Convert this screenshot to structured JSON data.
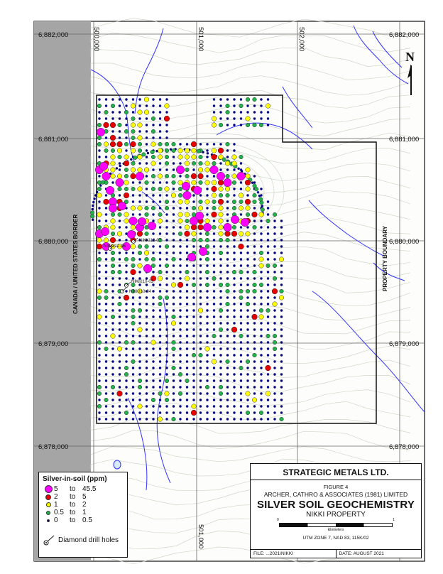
{
  "map": {
    "northings_left": [
      "6,882,000",
      "6,881,000",
      "6,880,000",
      "6,879,000",
      "6,878,000"
    ],
    "northings_right": [
      "6,882,000",
      "6,881,000",
      "6,880,000",
      "6,879,000",
      "6,878,000"
    ],
    "eastings_top": [
      "500,000",
      "501,000",
      "502,000"
    ],
    "easting_bottom": "501,000",
    "border_label": "CANADA / UNITED STATES BORDER",
    "property_label": "PROPERTY BOUNDARY",
    "north_label": "N",
    "drill_holes": [
      "NIKKI12-07",
      "NIKKI12-06",
      "NIKKI10-03",
      "NIKKI10-04"
    ],
    "colors": {
      "class_5": "#ff00ff",
      "class_2": "#e60000",
      "class_1": "#ffff00",
      "class_0_5": "#22b14c",
      "class_0": "#000080",
      "stream": "#3333ff",
      "contour": "#cfd8c8",
      "border_strip": "#a9a9a9"
    }
  },
  "legend": {
    "title": "Silver-in-soil (ppm)",
    "rows": [
      {
        "min": "5",
        "to": "to",
        "max": "45.5",
        "color": "#ff00ff",
        "size": 11
      },
      {
        "min": "2",
        "to": "to",
        "max": "5",
        "color": "#e60000",
        "size": 8
      },
      {
        "min": "1",
        "to": "to",
        "max": "2",
        "color": "#ffff00",
        "size": 7
      },
      {
        "min": "0.5",
        "to": "to",
        "max": "1",
        "color": "#22b14c",
        "size": 6
      },
      {
        "min": "0",
        "to": "to",
        "max": "0.5",
        "color": "#000080",
        "size": 4
      }
    ],
    "drill_label": "Diamond drill holes"
  },
  "title_block": {
    "company": "STRATEGIC METALS LTD.",
    "figure": "FIGURE 4",
    "firm": "ARCHER, CATHRO & ASSOCIATES (1981) LIMITED",
    "title": "SILVER SOIL GEOCHEMISTRY",
    "property": "NIKKI PROPERTY",
    "scale_zero": "0",
    "scale_one": "1",
    "scale_unit": "kilometers",
    "projection": "UTM ZONE 7, NAD 83, 115K/02",
    "file": "FILE: ...2021\\NIKKI",
    "date": "DATE:  AUGUST 2021"
  }
}
